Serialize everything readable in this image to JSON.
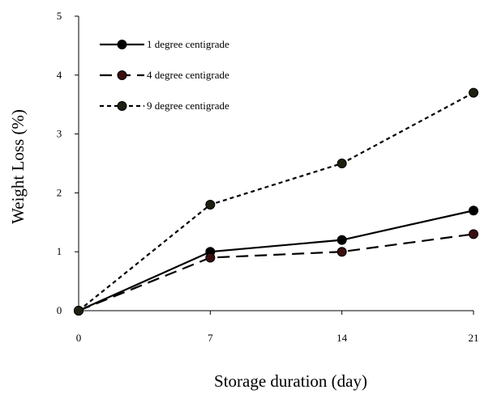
{
  "chart_data": {
    "type": "line",
    "title": "",
    "xlabel": "Storage duration (day)",
    "ylabel": "Weight Loss (%)",
    "x": [
      0,
      7,
      14,
      21
    ],
    "xticks": [
      "0",
      "7",
      "14",
      "21"
    ],
    "yticks": [
      "0",
      "1",
      "2",
      "3",
      "4",
      "5"
    ],
    "xlim": [
      0,
      21
    ],
    "ylim": [
      0,
      5
    ],
    "grid": false,
    "legend_position": "top-left",
    "series": [
      {
        "name": "1 degree centigrade",
        "values": [
          0,
          1.0,
          1.2,
          1.7
        ],
        "style": "solid",
        "marker_color": "#000000"
      },
      {
        "name": "4 degree centigrade",
        "values": [
          0,
          0.9,
          1.0,
          1.3
        ],
        "style": "long-dash",
        "marker_color": "#3a0f10"
      },
      {
        "name": "9 degree centigrade",
        "values": [
          0,
          1.8,
          2.5,
          3.7
        ],
        "style": "dotted",
        "marker_color": "#1f1f10"
      }
    ]
  }
}
